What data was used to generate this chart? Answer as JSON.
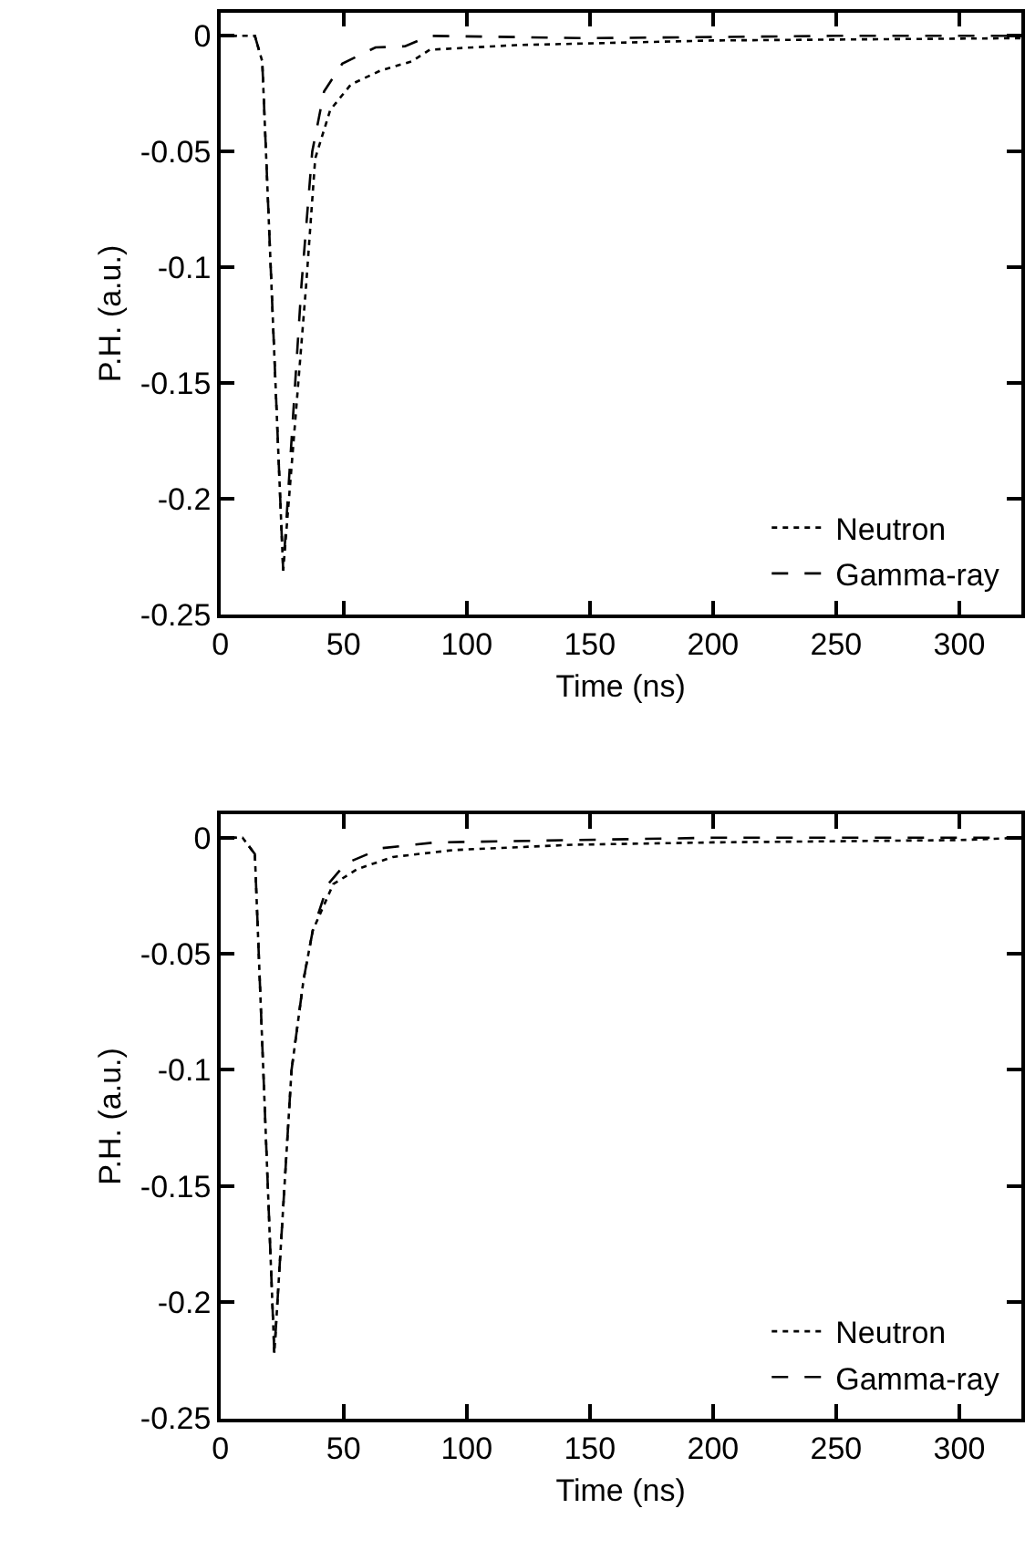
{
  "chart_data": [
    {
      "type": "line",
      "xlabel": "Time (ns)",
      "ylabel": "P.H. (a.u.)",
      "xlim": [
        0,
        325
      ],
      "ylim": [
        -0.25,
        0.01
      ],
      "xticks": [
        0,
        50,
        100,
        150,
        200,
        250,
        300
      ],
      "yticks": [
        {
          "value": 0,
          "label": "0"
        },
        -0.05,
        -0.1,
        -0.15,
        -0.2,
        -0.25
      ],
      "legend": "bottom right",
      "marker": "none",
      "series": [
        {
          "name": "Neutron",
          "color": "#000000",
          "line_style": "dotted",
          "x": [
            0,
            14,
            17,
            25.5,
            34.8,
            38.5,
            44.6,
            53,
            65,
            77.7,
            85,
            120,
            200,
            325
          ],
          "values": [
            0,
            0,
            -0.011,
            -0.231,
            -0.108,
            -0.053,
            -0.032,
            -0.021,
            -0.015,
            -0.011,
            -0.006,
            -0.004,
            -0.002,
            -0.001
          ]
        },
        {
          "name": "Gamma-ray",
          "color": "#000000",
          "line_style": "dashed",
          "x": [
            0,
            14,
            17,
            25.5,
            32.9,
            37.3,
            42.1,
            49.5,
            63,
            75,
            85,
            150,
            250,
            325
          ],
          "values": [
            0,
            0,
            -0.011,
            -0.231,
            -0.108,
            -0.05,
            -0.024,
            -0.012,
            -0.005,
            -0.0045,
            0,
            -0.001,
            0,
            0
          ]
        }
      ]
    },
    {
      "type": "line",
      "xlabel": "Time (ns)",
      "ylabel": "P.H. (a.u.)",
      "xlim": [
        0,
        325
      ],
      "ylim": [
        -0.25,
        0.01
      ],
      "xticks": [
        0,
        50,
        100,
        150,
        200,
        250,
        300
      ],
      "yticks": [
        {
          "value": 0,
          "label": "0"
        },
        -0.05,
        -0.1,
        -0.15,
        -0.2,
        -0.25
      ],
      "legend": "bottom right",
      "marker": "none",
      "series": [
        {
          "name": "Neutron",
          "color": "#000000",
          "line_style": "dotted",
          "x": [
            0,
            9,
            14,
            21.9,
            28.9,
            33.8,
            37.5,
            45.8,
            55.6,
            70,
            94.6,
            143.7,
            200,
            300,
            325
          ],
          "values": [
            0,
            0,
            -0.007,
            -0.222,
            -0.1,
            -0.061,
            -0.04,
            -0.02,
            -0.0135,
            -0.0083,
            -0.0053,
            -0.003,
            -0.002,
            -0.001,
            0
          ]
        },
        {
          "name": "Gamma-ray",
          "color": "#000000",
          "line_style": "dashed",
          "x": [
            0,
            9,
            14,
            21.9,
            28.9,
            33.8,
            37.5,
            43.7,
            51,
            65.5,
            87.5,
            200,
            325
          ],
          "values": [
            0,
            0,
            -0.007,
            -0.222,
            -0.1,
            -0.061,
            -0.04,
            -0.02,
            -0.011,
            -0.0045,
            -0.002,
            0,
            0
          ]
        }
      ]
    }
  ]
}
